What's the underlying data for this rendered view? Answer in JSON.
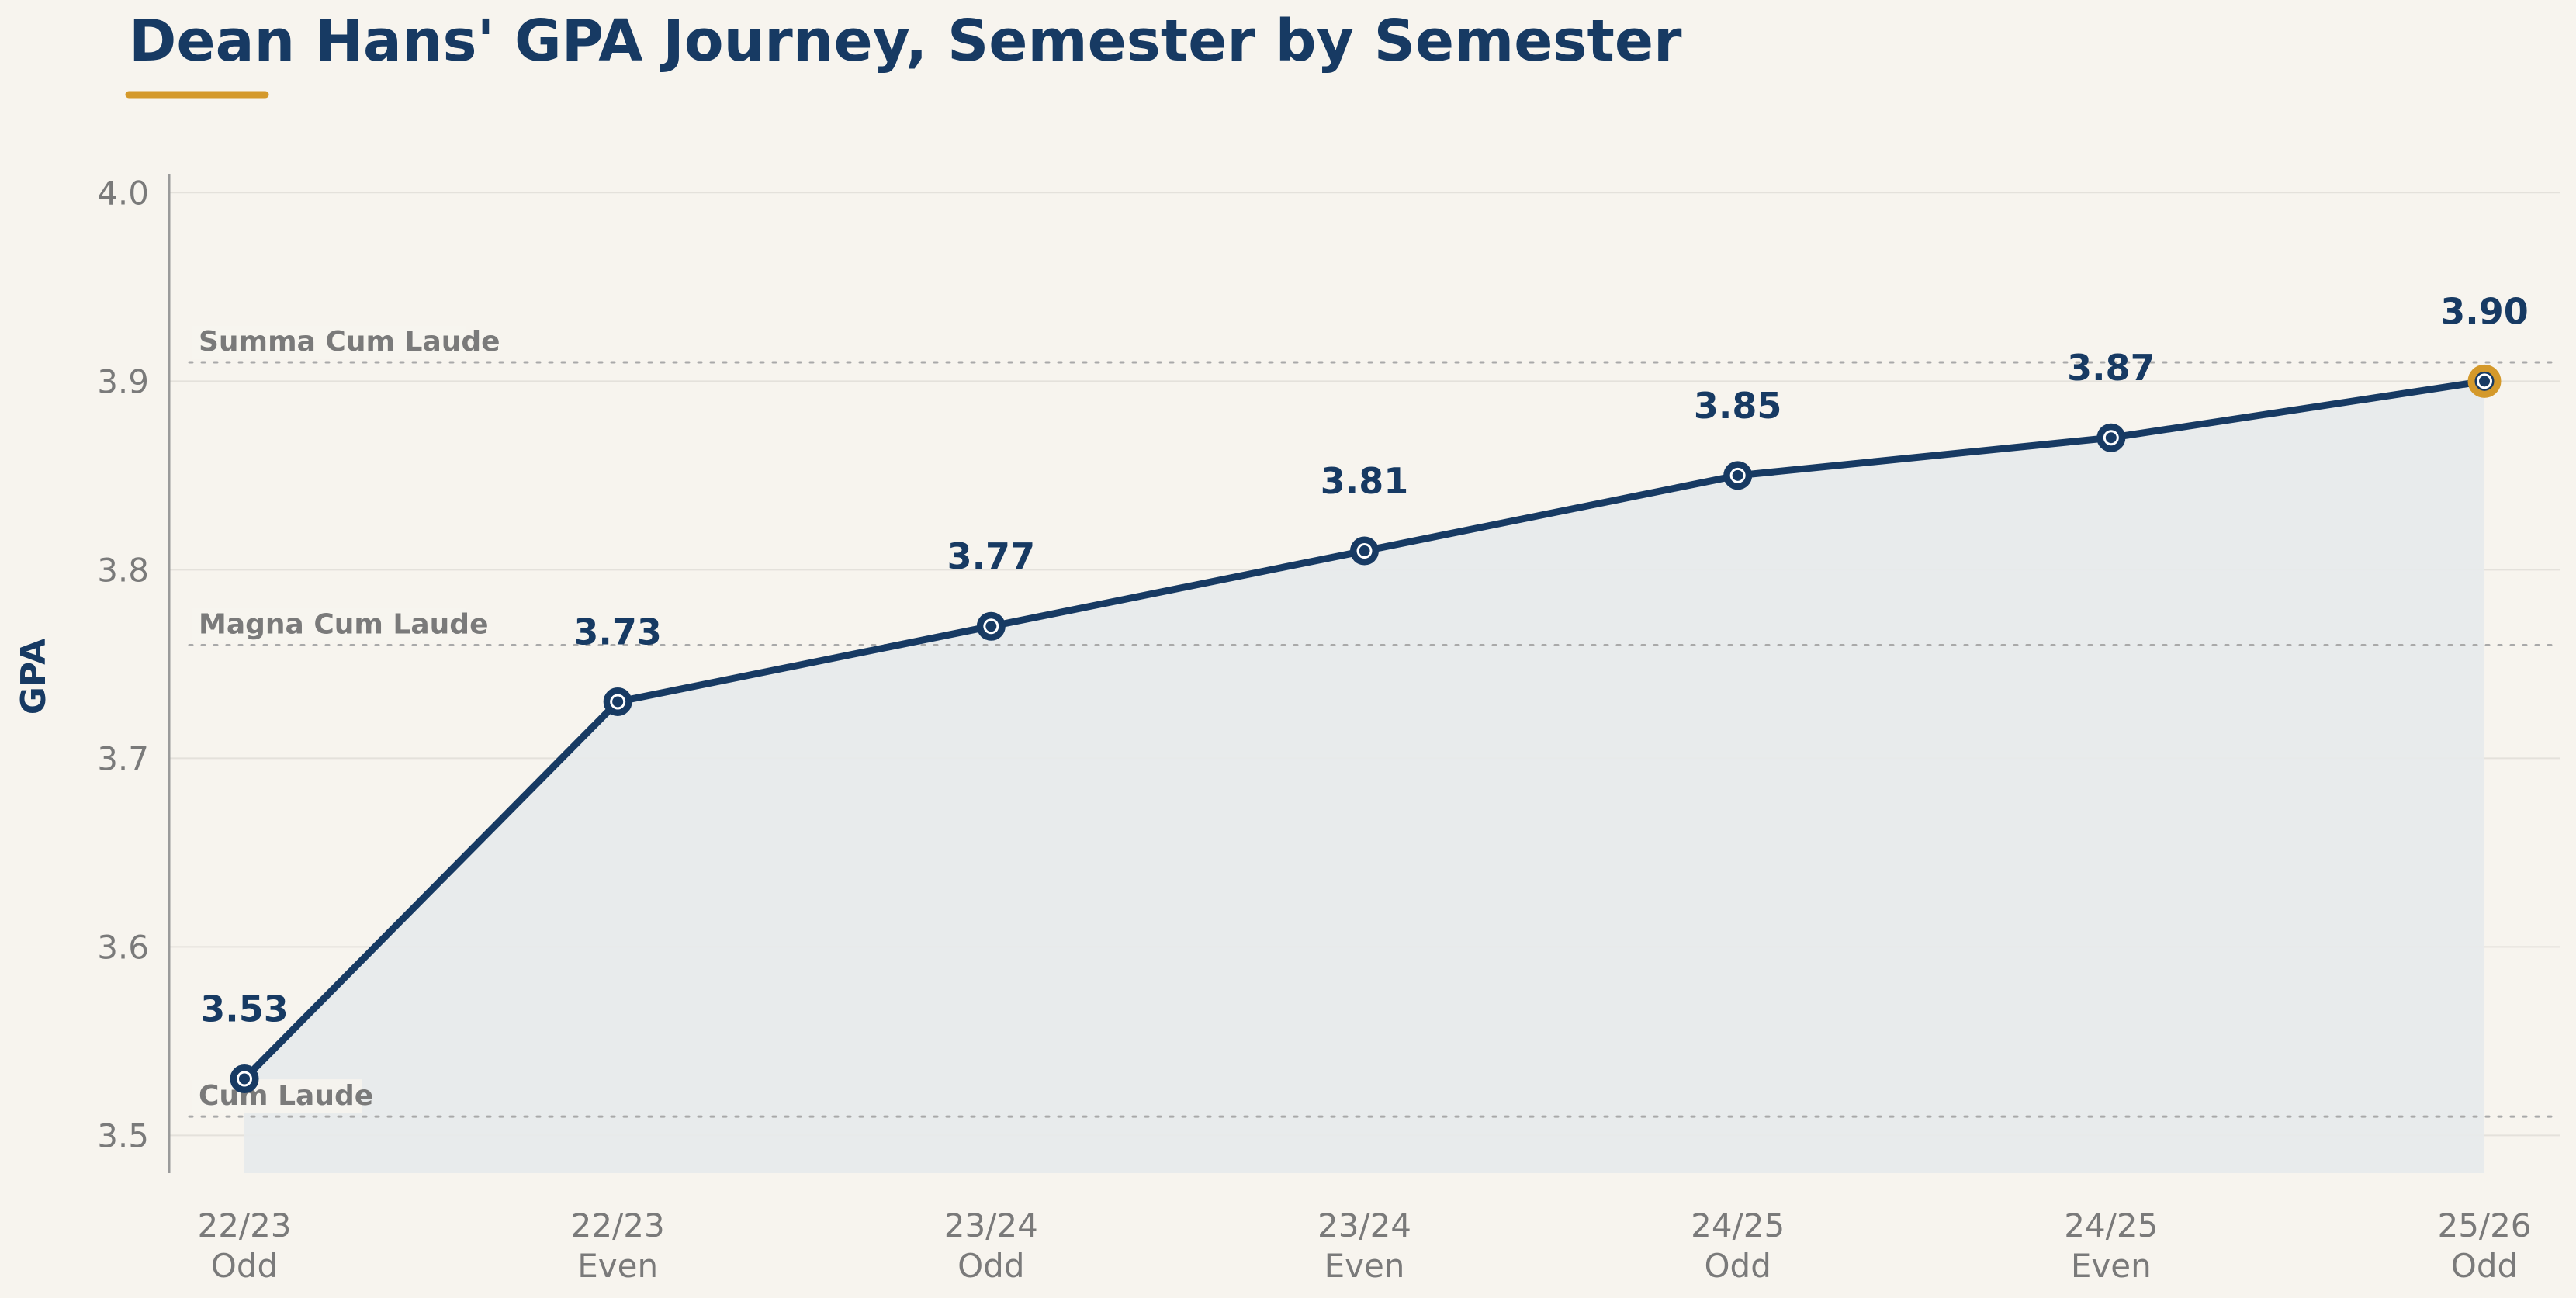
{
  "colors": {
    "background": "#f7f4ee",
    "line": "#173a63",
    "area": "#e7eaeb",
    "accent": "#d4992b",
    "grid": "#e4e1db",
    "reference": "#a9a9a9",
    "text_muted": "#7a7a7a"
  },
  "chart_data": {
    "type": "line",
    "title": "Dean Hans' GPA Journey, Semester by Semester",
    "ylabel": "GPA",
    "xlabel": "",
    "categories": [
      [
        "22/23",
        "Odd"
      ],
      [
        "22/23",
        "Even"
      ],
      [
        "23/24",
        "Odd"
      ],
      [
        "23/24",
        "Even"
      ],
      [
        "24/25",
        "Odd"
      ],
      [
        "24/25",
        "Even"
      ],
      [
        "25/26",
        "Odd"
      ]
    ],
    "values": [
      3.53,
      3.73,
      3.77,
      3.81,
      3.85,
      3.87,
      3.9
    ],
    "value_labels": [
      "3.53",
      "3.73",
      "3.77",
      "3.81",
      "3.85",
      "3.87",
      "3.90"
    ],
    "ylim": [
      3.48,
      4.01
    ],
    "yticks": [
      3.5,
      3.6,
      3.7,
      3.8,
      3.9,
      4.0
    ],
    "ytick_labels": [
      "3.5",
      "3.6",
      "3.7",
      "3.8",
      "3.9",
      "4.0"
    ],
    "grid": true,
    "area_fill": true,
    "highlight_last": true,
    "reference_lines": [
      {
        "label": "Summa Cum Laude",
        "value": 3.91
      },
      {
        "label": "Magna Cum Laude",
        "value": 3.76
      },
      {
        "label": "Cum Laude",
        "value": 3.51
      }
    ]
  }
}
